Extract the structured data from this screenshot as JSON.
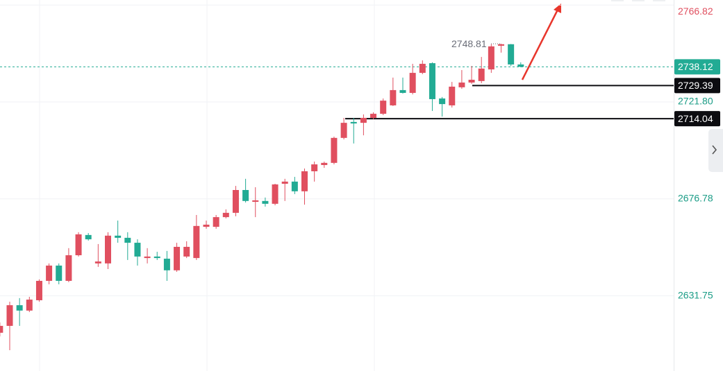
{
  "chart_data": {
    "type": "candlestick",
    "series": [
      {
        "open": [
          2614.6,
          2617.8,
          2627.4,
          2624.9,
          2629.7,
          2638.7,
          2645.8,
          2638.7,
          2650.6,
          2660.0,
          2646.8,
          2646.8,
          2659.7,
          2658.7,
          2656.4,
          2649.3,
          2650.0,
          2649.0,
          2643.6,
          2650.0,
          2649.3,
          2663.8,
          2663.8,
          2668.3,
          2670.3,
          2680.9,
          2675.4,
          2675.8,
          2674.5,
          2683.8,
          2684.8,
          2680.3,
          2689.6,
          2692.5,
          2693.5,
          2705.1,
          2712.5,
          2712.1,
          2714.4,
          2716.3,
          2720.2,
          2727.3,
          2726.0,
          2735.3,
          2739.8,
          2723.4,
          2720.2,
          2728.6,
          2730.8,
          2731.5,
          2736.9,
          2747.9,
          2748.6,
          2739.2
        ],
        "high": [
          2619.4,
          2629.0,
          2630.7,
          2631.3,
          2639.4,
          2646.8,
          2646.8,
          2653.9,
          2661.3,
          2660.9,
          2655.8,
          2661.3,
          2666.7,
          2661.3,
          2658.0,
          2653.9,
          2652.2,
          2652.6,
          2656.4,
          2657.1,
          2669.3,
          2666.7,
          2669.3,
          2671.9,
          2682.8,
          2686.1,
          2682.2,
          2677.4,
          2683.8,
          2686.1,
          2687.0,
          2690.9,
          2694.1,
          2694.1,
          2705.7,
          2714.4,
          2714.4,
          2716.0,
          2717.0,
          2723.4,
          2733.1,
          2733.1,
          2739.5,
          2741.1,
          2740.2,
          2724.1,
          2731.1,
          2736.6,
          2738.5,
          2742.7,
          2748.6,
          2748.81,
          2748.7,
          2740.2
        ],
        "low": [
          2612.9,
          2606.5,
          2617.8,
          2624.2,
          2629.0,
          2637.1,
          2637.1,
          2638.1,
          2650.0,
          2657.4,
          2645.2,
          2644.2,
          2656.4,
          2648.4,
          2645.8,
          2646.8,
          2648.4,
          2638.7,
          2642.9,
          2649.3,
          2648.4,
          2662.9,
          2662.9,
          2667.7,
          2668.7,
          2675.1,
          2668.3,
          2673.2,
          2673.8,
          2675.8,
          2679.0,
          2674.1,
          2684.8,
          2691.2,
          2692.8,
          2704.4,
          2702.5,
          2706.3,
          2713.7,
          2715.7,
          2719.9,
          2725.7,
          2725.3,
          2734.7,
          2717.6,
          2715.0,
          2719.2,
          2727.9,
          2730.2,
          2730.5,
          2735.3,
          2744.7,
          2738.5,
          2737.9
        ],
        "close": [
          2617.8,
          2627.4,
          2624.9,
          2630.0,
          2638.7,
          2645.8,
          2638.7,
          2650.6,
          2660.3,
          2658.0,
          2647.7,
          2659.7,
          2658.7,
          2656.4,
          2650.0,
          2650.0,
          2649.3,
          2643.6,
          2654.5,
          2654.5,
          2664.2,
          2664.8,
          2668.3,
          2670.3,
          2680.9,
          2675.8,
          2676.1,
          2674.5,
          2683.5,
          2684.8,
          2680.3,
          2689.6,
          2692.8,
          2693.5,
          2705.1,
          2712.1,
          2711.8,
          2714.4,
          2716.3,
          2722.4,
          2727.3,
          2726.0,
          2735.3,
          2739.5,
          2723.1,
          2720.8,
          2728.9,
          2730.8,
          2732.1,
          2737.3,
          2747.6,
          2748.6,
          2739.2,
          2738.12
        ]
      }
    ],
    "up_color": "#e04f5f",
    "down_color": "#22ab94",
    "ylim": [
      2596.84,
      2769.14
    ],
    "yticks": [
      2631.75,
      2676.78,
      {
        "value": 2721.8,
        "label": "2721.80"
      }
    ],
    "ytick_color": "#1a9c86",
    "top_marker": {
      "value": 2766.82,
      "color": "#e04f5f"
    },
    "current_price": {
      "value": 2738.12,
      "color": "#22ab94"
    },
    "levels": [
      2729.39,
      2714.04
    ],
    "level_color": "#0c0c10",
    "high_marker": 2748.81,
    "grid": true
  }
}
